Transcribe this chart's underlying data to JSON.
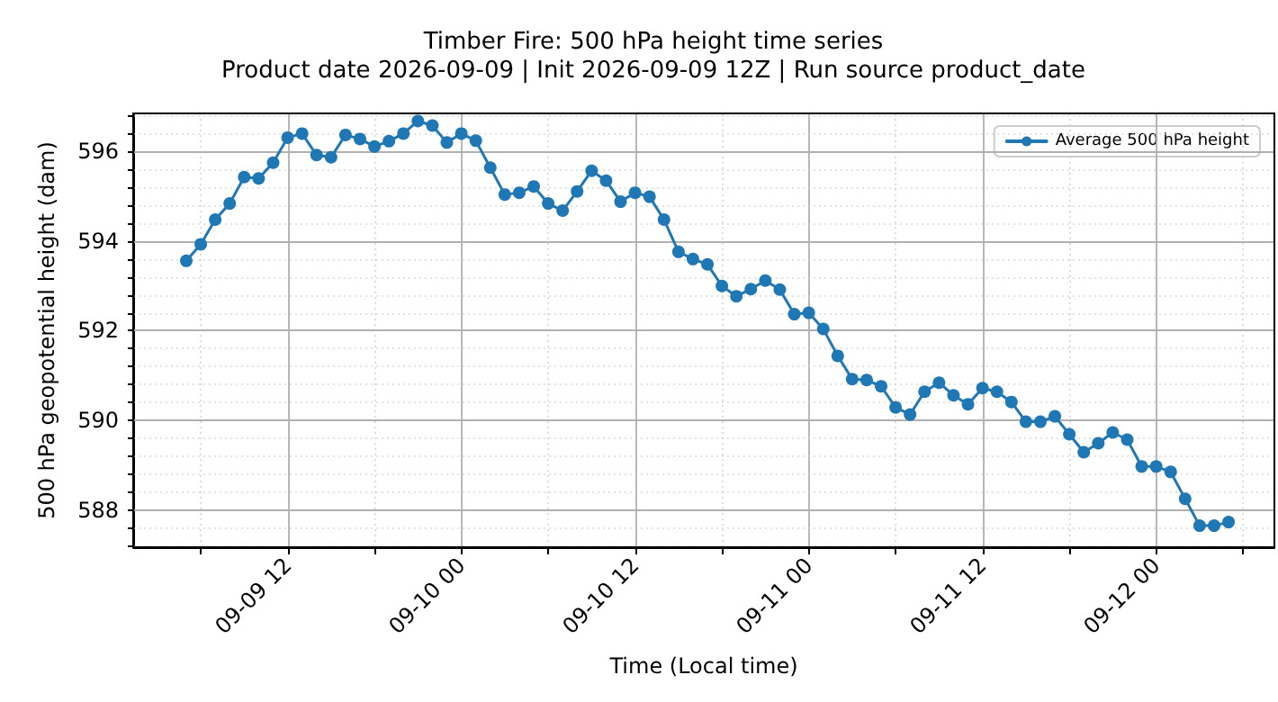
{
  "chart_data": {
    "type": "line",
    "title": "Timber Fire: 500 hPa height time series",
    "subtitle": "Product date 2026-09-09 | Init 2026-09-09 12Z | Run source product_date",
    "xlabel": "Time (Local time)",
    "ylabel": "500 hPa geopotential height (dam)",
    "x": [
      "2026-09-09T05:00",
      "2026-09-09T06:00",
      "2026-09-09T07:00",
      "2026-09-09T08:00",
      "2026-09-09T09:00",
      "2026-09-09T10:00",
      "2026-09-09T11:00",
      "2026-09-09T12:00",
      "2026-09-09T13:00",
      "2026-09-09T14:00",
      "2026-09-09T15:00",
      "2026-09-09T16:00",
      "2026-09-09T17:00",
      "2026-09-09T18:00",
      "2026-09-09T19:00",
      "2026-09-09T20:00",
      "2026-09-09T21:00",
      "2026-09-09T22:00",
      "2026-09-09T23:00",
      "2026-09-10T00:00",
      "2026-09-10T01:00",
      "2026-09-10T02:00",
      "2026-09-10T03:00",
      "2026-09-10T04:00",
      "2026-09-10T05:00",
      "2026-09-10T06:00",
      "2026-09-10T07:00",
      "2026-09-10T08:00",
      "2026-09-10T09:00",
      "2026-09-10T10:00",
      "2026-09-10T11:00",
      "2026-09-10T12:00",
      "2026-09-10T13:00",
      "2026-09-10T14:00",
      "2026-09-10T15:00",
      "2026-09-10T16:00",
      "2026-09-10T17:00",
      "2026-09-10T18:00",
      "2026-09-10T19:00",
      "2026-09-10T20:00",
      "2026-09-10T21:00",
      "2026-09-10T22:00",
      "2026-09-10T23:00",
      "2026-09-11T00:00",
      "2026-09-11T01:00",
      "2026-09-11T02:00",
      "2026-09-11T03:00",
      "2026-09-11T04:00",
      "2026-09-11T05:00",
      "2026-09-11T06:00",
      "2026-09-11T07:00",
      "2026-09-11T08:00",
      "2026-09-11T09:00",
      "2026-09-11T10:00",
      "2026-09-11T11:00",
      "2026-09-11T12:00",
      "2026-09-11T13:00",
      "2026-09-11T14:00",
      "2026-09-11T15:00",
      "2026-09-11T16:00",
      "2026-09-11T17:00",
      "2026-09-11T18:00",
      "2026-09-11T19:00",
      "2026-09-11T20:00",
      "2026-09-11T21:00",
      "2026-09-11T22:00",
      "2026-09-11T23:00",
      "2026-09-12T00:00",
      "2026-09-12T01:00",
      "2026-09-12T02:00",
      "2026-09-12T03:00",
      "2026-09-12T04:00",
      "2026-09-12T05:00"
    ],
    "series": [
      {
        "name": "Average 500 hPa height",
        "color": "#1f77b4",
        "values": [
          593.56,
          593.93,
          594.48,
          594.84,
          595.43,
          595.4,
          595.75,
          596.31,
          596.4,
          595.92,
          595.87,
          596.37,
          596.28,
          596.11,
          596.23,
          596.4,
          596.68,
          596.58,
          596.2,
          596.4,
          596.24,
          595.64,
          595.04,
          595.08,
          595.22,
          594.84,
          594.68,
          595.11,
          595.57,
          595.35,
          594.88,
          595.08,
          594.99,
          594.48,
          593.76,
          593.6,
          593.48,
          593.0,
          592.77,
          592.93,
          593.12,
          592.92,
          592.37,
          592.4,
          592.04,
          591.44,
          590.92,
          590.9,
          590.76,
          590.29,
          590.13,
          590.64,
          590.84,
          590.56,
          590.36,
          590.72,
          590.64,
          590.41,
          589.97,
          589.97,
          590.09,
          589.69,
          589.29,
          589.49,
          589.73,
          589.57,
          588.97,
          588.97,
          588.85,
          588.25,
          587.65,
          587.65,
          587.73
        ]
      }
    ],
    "xlim": [
      "2026-09-09T01:20",
      "2026-09-12T08:10"
    ],
    "xticks": [
      {
        "value": "2026-09-09T06:00",
        "label": null
      },
      {
        "value": "2026-09-09T12:00",
        "label": "09-09 12"
      },
      {
        "value": "2026-09-09T18:00",
        "label": null
      },
      {
        "value": "2026-09-10T00:00",
        "label": "09-10 00"
      },
      {
        "value": "2026-09-10T06:00",
        "label": null
      },
      {
        "value": "2026-09-10T12:00",
        "label": "09-10 12"
      },
      {
        "value": "2026-09-10T18:00",
        "label": null
      },
      {
        "value": "2026-09-11T00:00",
        "label": "09-11 00"
      },
      {
        "value": "2026-09-11T06:00",
        "label": null
      },
      {
        "value": "2026-09-11T12:00",
        "label": "09-11 12"
      },
      {
        "value": "2026-09-11T18:00",
        "label": null
      },
      {
        "value": "2026-09-12T00:00",
        "label": "09-12 00"
      },
      {
        "value": "2026-09-12T06:00",
        "label": null
      }
    ],
    "ylim": [
      587.17,
      596.85
    ],
    "yticks": [
      {
        "value": 587.2,
        "label": null
      },
      {
        "value": 587.6,
        "label": null
      },
      588,
      {
        "value": 588.4,
        "label": null
      },
      {
        "value": 588.8,
        "label": null
      },
      {
        "value": 589.2,
        "label": null
      },
      {
        "value": 589.6,
        "label": null
      },
      590,
      {
        "value": 590.4,
        "label": null
      },
      {
        "value": 590.8,
        "label": null
      },
      {
        "value": 591.2,
        "label": null
      },
      {
        "value": 591.6,
        "label": null
      },
      592,
      {
        "value": 592.4,
        "label": null
      },
      {
        "value": 592.8,
        "label": null
      },
      {
        "value": 593.2,
        "label": null
      },
      {
        "value": 593.6,
        "label": null
      },
      594,
      {
        "value": 594.4,
        "label": null
      },
      {
        "value": 594.8,
        "label": null
      },
      {
        "value": 595.2,
        "label": null
      },
      {
        "value": 595.6,
        "label": null
      },
      596,
      {
        "value": 596.4,
        "label": null
      },
      {
        "value": 596.8,
        "label": null
      }
    ],
    "grid": true,
    "legend": "top right",
    "marker": "circle",
    "line_style": "solid"
  }
}
